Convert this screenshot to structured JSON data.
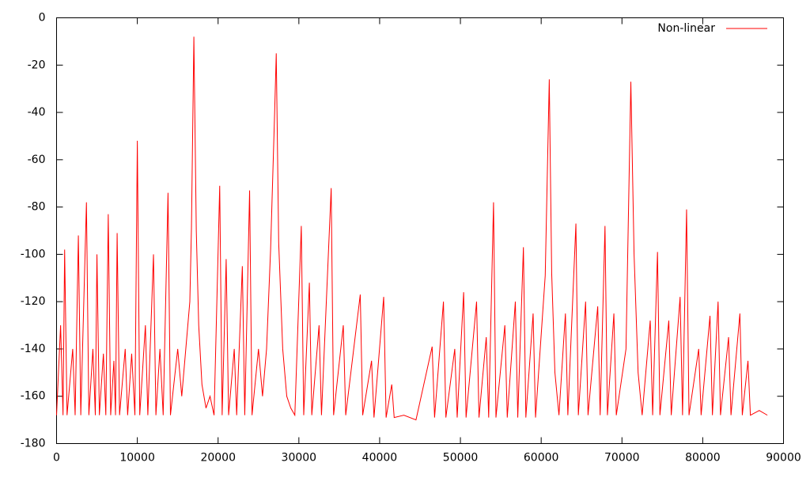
{
  "chart_data": {
    "type": "line",
    "x": [
      0,
      500,
      800,
      1000,
      1300,
      2000,
      2300,
      2700,
      3000,
      3700,
      4000,
      4500,
      4800,
      5000,
      5300,
      5800,
      6100,
      6400,
      6700,
      7100,
      7300,
      7500,
      7800,
      8500,
      8800,
      9300,
      9700,
      10000,
      10300,
      11000,
      11300,
      12000,
      12300,
      12800,
      13200,
      13800,
      14100,
      15000,
      15500,
      16000,
      16500,
      16700,
      17000,
      17300,
      17600,
      18000,
      18500,
      19000,
      19500,
      20200,
      20500,
      21000,
      21300,
      22000,
      22300,
      23000,
      23300,
      23900,
      24200,
      25000,
      25500,
      26000,
      26500,
      27000,
      27200,
      27500,
      28000,
      28500,
      29000,
      29500,
      30300,
      30600,
      31300,
      31600,
      32500,
      32800,
      34000,
      34300,
      35500,
      35800,
      37600,
      37900,
      39000,
      39300,
      40500,
      40800,
      41500,
      41800,
      43000,
      44500,
      46500,
      46800,
      47900,
      48200,
      49300,
      49600,
      50400,
      50700,
      52000,
      52300,
      53200,
      53500,
      54100,
      54400,
      55500,
      55800,
      56800,
      57100,
      57800,
      58100,
      59000,
      59300,
      60500,
      61000,
      61300,
      61700,
      62200,
      63000,
      63300,
      64300,
      64600,
      65500,
      65800,
      67000,
      67300,
      67900,
      68200,
      69000,
      69300,
      70500,
      71100,
      71500,
      72000,
      72500,
      73500,
      73800,
      74400,
      74700,
      75800,
      76100,
      77200,
      77500,
      78000,
      78300,
      79500,
      79800,
      80900,
      81200,
      81900,
      82200,
      83200,
      83500,
      84600,
      84900,
      85600,
      85900,
      87000,
      88000
    ],
    "series": [
      {
        "name": "Non-linear",
        "color": "#ff0000",
        "values": [
          -168,
          -130,
          -168,
          -98,
          -168,
          -140,
          -168,
          -92,
          -168,
          -78,
          -168,
          -140,
          -168,
          -100,
          -168,
          -142,
          -168,
          -83,
          -168,
          -145,
          -168,
          -91,
          -168,
          -140,
          -168,
          -142,
          -168,
          -52,
          -168,
          -130,
          -168,
          -100,
          -168,
          -140,
          -168,
          -74,
          -168,
          -140,
          -160,
          -140,
          -120,
          -89,
          -8,
          -90,
          -130,
          -155,
          -165,
          -160,
          -168,
          -71,
          -168,
          -102,
          -168,
          -140,
          -168,
          -105,
          -168,
          -73,
          -168,
          -140,
          -160,
          -140,
          -98,
          -40,
          -15,
          -95,
          -140,
          -160,
          -165,
          -168,
          -88,
          -168,
          -112,
          -168,
          -130,
          -168,
          -72,
          -168,
          -130,
          -168,
          -117,
          -168,
          -145,
          -169,
          -118,
          -169,
          -155,
          -169,
          -168,
          -170,
          -139,
          -169,
          -120,
          -169,
          -140,
          -169,
          -116,
          -169,
          -120,
          -169,
          -135,
          -169,
          -78,
          -169,
          -130,
          -169,
          -120,
          -169,
          -97,
          -169,
          -125,
          -169,
          -109,
          -26,
          -108,
          -150,
          -168,
          -125,
          -168,
          -87,
          -168,
          -120,
          -168,
          -122,
          -168,
          -88,
          -168,
          -125,
          -168,
          -140,
          -27,
          -100,
          -150,
          -168,
          -128,
          -168,
          -99,
          -168,
          -128,
          -168,
          -118,
          -168,
          -81,
          -168,
          -140,
          -168,
          -126,
          -168,
          -120,
          -168,
          -135,
          -168,
          -125,
          -168,
          -145,
          -168,
          -166,
          -168
        ]
      }
    ],
    "xlim": [
      0,
      90000
    ],
    "xticks": [
      0,
      10000,
      20000,
      30000,
      40000,
      50000,
      60000,
      70000,
      80000,
      90000
    ],
    "ylim": [
      -180,
      0
    ],
    "yticks": [
      0,
      -20,
      -40,
      -60,
      -80,
      -100,
      -120,
      -140,
      -160,
      -180
    ],
    "grid": false,
    "legend": "top-right"
  }
}
